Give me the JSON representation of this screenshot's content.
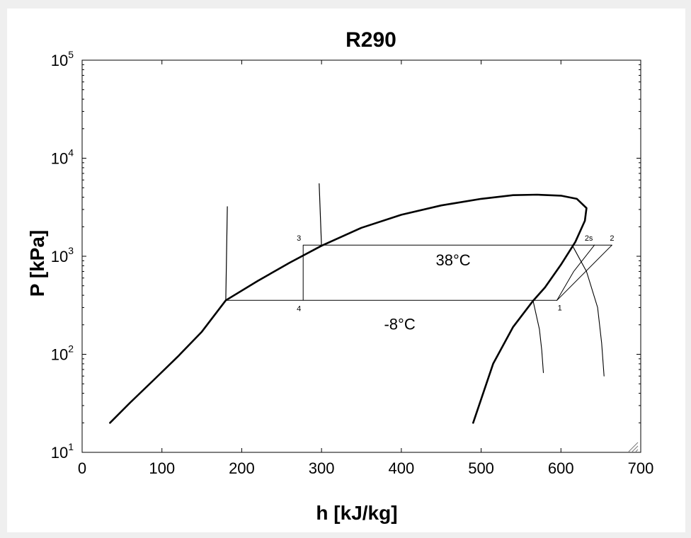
{
  "chart_data": {
    "type": "line",
    "title": "R290",
    "xlabel": "h [kJ/kg]",
    "ylabel": "P [kPa]",
    "xlim": [
      0,
      700
    ],
    "ylim": [
      10,
      100000
    ],
    "yscale": "log",
    "grid": false,
    "x_ticks": [
      0,
      100,
      200,
      300,
      400,
      500,
      600,
      700
    ],
    "y_ticks": [
      {
        "value": 10,
        "base": "10",
        "exp": "1"
      },
      {
        "value": 100,
        "base": "10",
        "exp": "2"
      },
      {
        "value": 1000,
        "base": "10",
        "exp": "3"
      },
      {
        "value": 10000,
        "base": "10",
        "exp": "4"
      },
      {
        "value": 100000,
        "base": "10",
        "exp": "5"
      }
    ],
    "series": [
      {
        "values": [
          [
            35,
            20
          ],
          [
            60,
            32
          ],
          [
            90,
            55
          ],
          [
            120,
            95
          ],
          [
            150,
            170
          ],
          [
            180,
            355
          ],
          [
            220,
            560
          ],
          [
            260,
            860
          ],
          [
            300,
            1280
          ],
          [
            350,
            1950
          ],
          [
            400,
            2650
          ],
          [
            450,
            3300
          ],
          [
            500,
            3850
          ],
          [
            540,
            4200
          ],
          [
            570,
            4250
          ],
          [
            600,
            4150
          ],
          [
            620,
            3850
          ],
          [
            632,
            3100
          ],
          [
            630,
            2300
          ],
          [
            618,
            1400
          ],
          [
            600,
            820
          ],
          [
            580,
            480
          ],
          [
            565,
            350
          ],
          [
            540,
            190
          ],
          [
            515,
            80
          ],
          [
            490,
            20
          ]
        ]
      },
      {
        "values": [
          [
            180,
            355
          ],
          [
            595,
            355
          ],
          [
            664,
            1300
          ],
          [
            277,
            1300
          ],
          [
            277,
            355
          ]
        ]
      },
      {
        "values": [
          [
            595,
            355
          ],
          [
            616,
            700
          ],
          [
            642,
            1300
          ]
        ]
      },
      {
        "values": [
          [
            180,
            355
          ],
          [
            182,
            3200
          ]
        ]
      },
      {
        "values": [
          [
            300,
            1280
          ],
          [
            297,
            5500
          ]
        ]
      },
      {
        "values": [
          [
            565,
            355
          ],
          [
            573,
            180
          ],
          [
            576,
            110
          ],
          [
            578,
            65
          ]
        ]
      },
      {
        "values": [
          [
            614,
            1300
          ],
          [
            632,
            700
          ],
          [
            646,
            300
          ],
          [
            651,
            130
          ],
          [
            654,
            60
          ]
        ]
      }
    ],
    "state_points": [
      {
        "label": "1",
        "h": 595,
        "p": 355
      },
      {
        "label": "2s",
        "h": 642,
        "p": 1300
      },
      {
        "label": "2",
        "h": 664,
        "p": 1300
      },
      {
        "label": "3",
        "h": 277,
        "p": 1300
      },
      {
        "label": "4",
        "h": 277,
        "p": 355
      }
    ],
    "annotations": [
      {
        "text": "38°C",
        "h": 465,
        "p": 920
      },
      {
        "text": "-8°C",
        "h": 398,
        "p": 205
      }
    ]
  }
}
